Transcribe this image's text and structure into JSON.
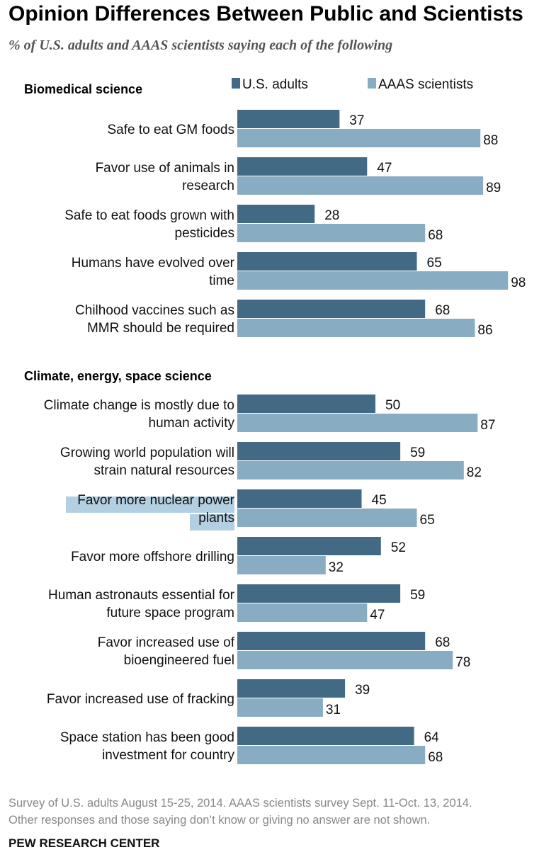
{
  "title": "Opinion Differences Between Public and Scientists",
  "subtitle": "% of U.S. adults and AAAS scientists saying each of the following",
  "colors": {
    "us_adults": "#436a84",
    "aaas_scientists": "#88adc3",
    "highlight": "#b3d0e2"
  },
  "chart_data": {
    "type": "bar",
    "orientation": "horizontal",
    "xlim": [
      0,
      100
    ],
    "legend": [
      "U.S. adults",
      "AAAS scientists"
    ],
    "legend_placement": "top-right",
    "series_names": [
      "U.S. adults",
      "AAAS scientists"
    ],
    "groups": [
      {
        "title": "Biomedical science",
        "items": [
          {
            "label": [
              "Safe to eat GM foods"
            ],
            "us": 37,
            "aaas": 88
          },
          {
            "label": [
              "Favor use of animals in",
              "research"
            ],
            "us": 47,
            "aaas": 89
          },
          {
            "label": [
              "Safe to eat foods grown with",
              "pesticides"
            ],
            "us": 28,
            "aaas": 68
          },
          {
            "label": [
              "Humans have evolved over",
              "time"
            ],
            "us": 65,
            "aaas": 98
          },
          {
            "label": [
              "Chilhood vaccines such as",
              "MMR should be required"
            ],
            "us": 68,
            "aaas": 86
          }
        ]
      },
      {
        "title": "Climate, energy, space science",
        "items": [
          {
            "label": [
              "Climate change is mostly due to",
              "human activity"
            ],
            "us": 50,
            "aaas": 87
          },
          {
            "label": [
              "Growing world population will",
              "strain natural resources"
            ],
            "us": 59,
            "aaas": 82
          },
          {
            "label": [
              "Favor more nuclear power",
              "plants"
            ],
            "us": 45,
            "aaas": 65,
            "highlighted": true
          },
          {
            "label": [
              "Favor more offshore drilling"
            ],
            "us": 52,
            "aaas": 32
          },
          {
            "label": [
              "Human astronauts essential for",
              "future space program"
            ],
            "us": 59,
            "aaas": 47
          },
          {
            "label": [
              "Favor increased use of",
              "bioengineered fuel"
            ],
            "us": 68,
            "aaas": 78
          },
          {
            "label": [
              "Favor increased use of fracking"
            ],
            "us": 39,
            "aaas": 31
          },
          {
            "label": [
              "Space station has been good",
              "investment for country"
            ],
            "us": 64,
            "aaas": 68
          }
        ]
      }
    ]
  },
  "footer": {
    "note_line1": "Survey of U.S. adults August 15-25, 2014. AAAS scientists survey Sept. 11-Oct. 13, 2014.",
    "note_line2": "Other responses and those saying don’t know or giving no answer are not shown.",
    "source": "PEW RESEARCH CENTER"
  }
}
